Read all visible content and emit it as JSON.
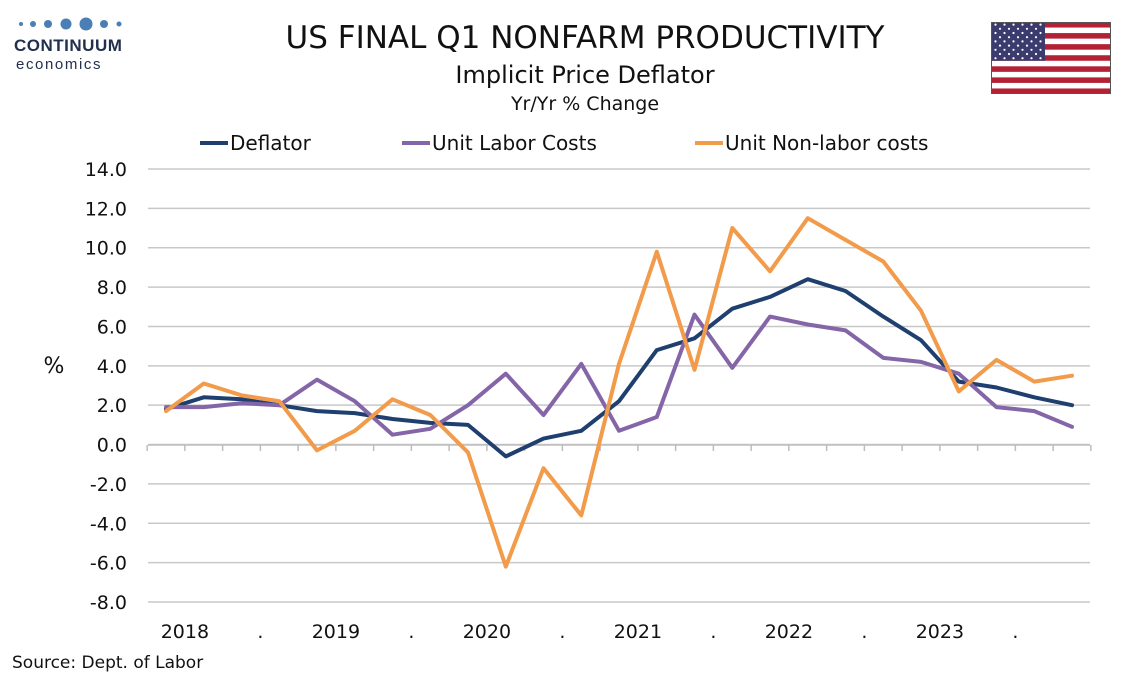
{
  "logo": {
    "line1": "CONTINUUM",
    "line2": "economics"
  },
  "title": "US FINAL Q1  NONFARM PRODUCTIVITY",
  "subtitle": "Implicit Price Deflator",
  "subsubtitle": "Yr/Yr % Change",
  "source": "Source: Dept. of Labor",
  "flag_icon": "us-flag-icon",
  "colors": {
    "deflator": "#1f3f6e",
    "ulc": "#8466a8",
    "unlc": "#f29b4b",
    "grid": "#c8c8c8"
  },
  "chart_data": {
    "type": "line",
    "ylabel": "%",
    "ylim": [
      -8,
      14
    ],
    "yticks": [
      "14.0",
      "12.0",
      "10.0",
      "8.0",
      "6.0",
      "4.0",
      "2.0",
      "0.0",
      "-2.0",
      "-4.0",
      "-6.0",
      "-8.0"
    ],
    "x_tick_labels": [
      "2018",
      ".",
      "2019",
      ".",
      "2020",
      ".",
      "2021",
      ".",
      "2022",
      ".",
      "2023",
      "."
    ],
    "x": [
      "2018Q1",
      "2018Q2",
      "2018Q3",
      "2018Q4",
      "2019Q1",
      "2019Q2",
      "2019Q3",
      "2019Q4",
      "2020Q1",
      "2020Q2",
      "2020Q3",
      "2020Q4",
      "2021Q1",
      "2021Q2",
      "2021Q3",
      "2021Q4",
      "2022Q1",
      "2022Q2",
      "2022Q3",
      "2022Q4",
      "2023Q1",
      "2023Q2",
      "2023Q3",
      "2023Q4",
      "2024Q1"
    ],
    "grid": true,
    "legend_position": "top",
    "series": [
      {
        "name": "Deflator",
        "color": "#1f3f6e",
        "values": [
          1.8,
          2.4,
          2.3,
          2.0,
          1.7,
          1.6,
          1.3,
          1.1,
          1.0,
          -0.6,
          0.3,
          0.7,
          2.2,
          4.8,
          5.4,
          6.9,
          7.5,
          8.4,
          7.8,
          6.5,
          5.3,
          3.2,
          2.9,
          2.4,
          2.0
        ]
      },
      {
        "name": "Unit Labor Costs",
        "color": "#8466a8",
        "values": [
          1.9,
          1.9,
          2.1,
          2.0,
          3.3,
          2.2,
          0.5,
          0.8,
          2.0,
          3.6,
          1.5,
          4.1,
          0.7,
          1.4,
          6.6,
          3.9,
          6.5,
          6.1,
          5.8,
          4.4,
          4.2,
          3.6,
          1.9,
          1.7,
          0.9
        ]
      },
      {
        "name": "Unit Non-labor costs",
        "color": "#f29b4b",
        "values": [
          1.7,
          3.1,
          2.5,
          2.2,
          -0.3,
          0.7,
          2.3,
          1.5,
          -0.4,
          -6.2,
          -1.2,
          -3.6,
          4.1,
          9.8,
          3.8,
          11.0,
          8.8,
          11.5,
          10.4,
          9.3,
          6.8,
          2.7,
          4.3,
          3.2,
          3.5
        ]
      }
    ]
  }
}
